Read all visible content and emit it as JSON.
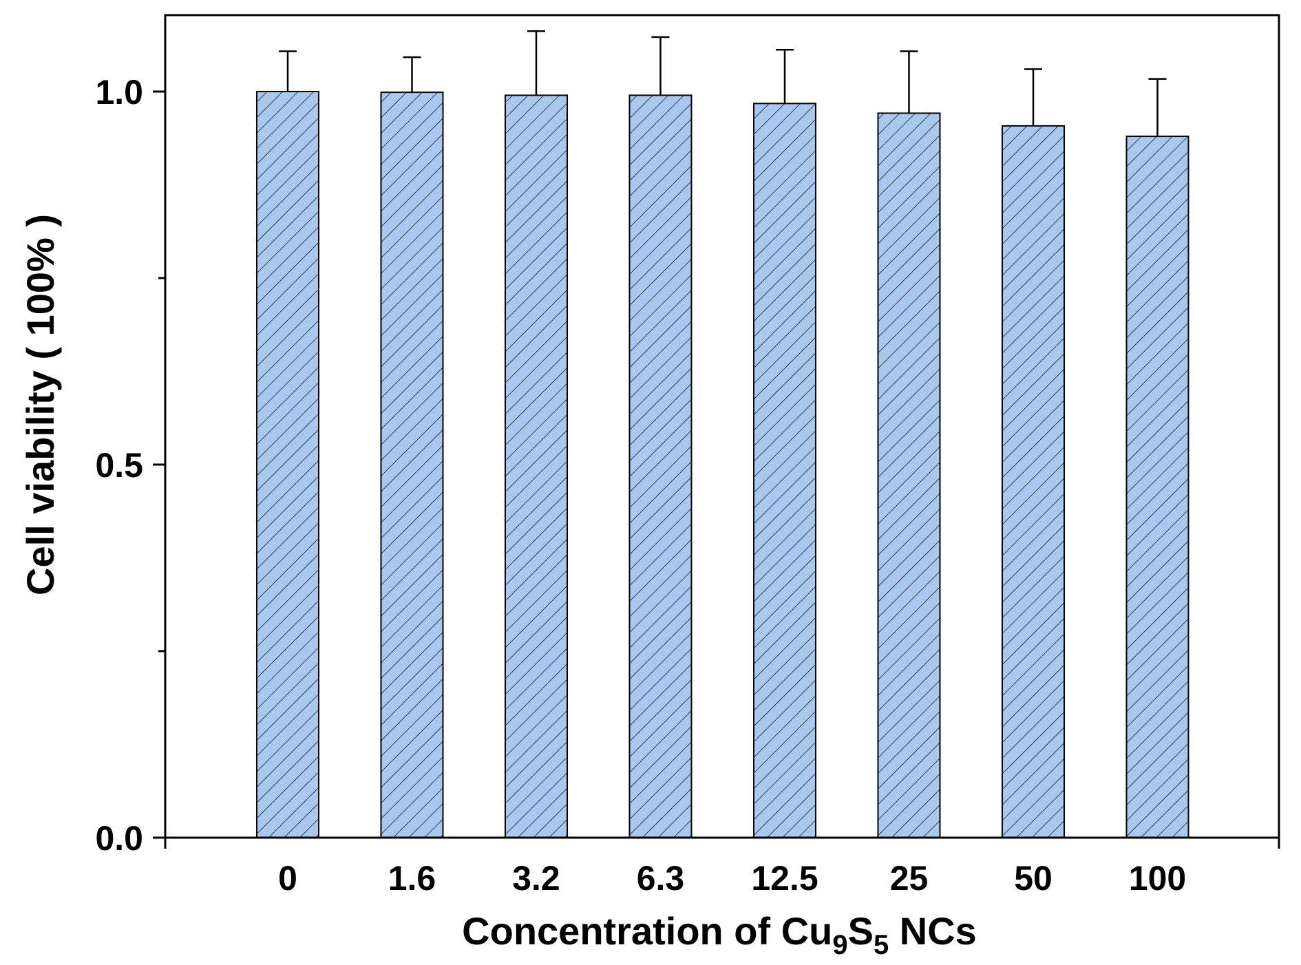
{
  "chart_data": {
    "type": "bar",
    "categories": [
      "0",
      "1.6",
      "3.2",
      "6.3",
      "12.5",
      "25",
      "50",
      "100"
    ],
    "values": [
      1.0,
      0.999,
      0.995,
      0.995,
      0.984,
      0.971,
      0.954,
      0.94
    ],
    "errors": [
      0.054,
      0.047,
      0.086,
      0.078,
      0.072,
      0.083,
      0.076,
      0.077
    ],
    "yticks": [
      0.0,
      0.5,
      1.0
    ],
    "ytick_labels": [
      "0.0",
      "0.5",
      "1.0"
    ],
    "ylim": [
      0.0,
      1.1
    ],
    "xlabel": {
      "prefix": "Concentration of Cu",
      "sub1": "9",
      "mid": "S",
      "sub2": "5",
      "suffix": " NCs"
    },
    "ylabel": "Cell viability ( 100% )",
    "bar_color": "#a9c8ee",
    "bar_pattern": "diagonal hatch",
    "grid": false,
    "legend": "none"
  }
}
